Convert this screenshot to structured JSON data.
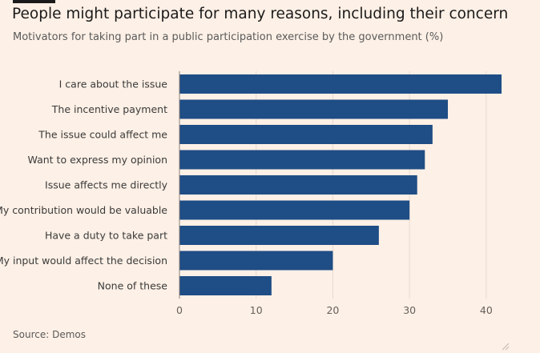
{
  "header": {
    "title": "People might participate for many reasons, including their concern",
    "subtitle": "Motivators for taking part in a public participation exercise by the government (%)"
  },
  "footer": {
    "source": "Source: Demos"
  },
  "colors": {
    "background": "#fdf0e6",
    "bar": "#1f4d85",
    "gridline": "#e6d9ce",
    "axis_text": "#66605b",
    "label_text": "#3a3a3a"
  },
  "chart_data": {
    "type": "bar",
    "orientation": "horizontal",
    "categories": [
      "I care about the issue",
      "The incentive payment",
      "The issue could affect me",
      "Want to express my opinion",
      "Issue affects me directly",
      "My contribution would be valuable",
      "Have a duty to take part",
      "My input would affect the decision",
      "None of these"
    ],
    "values": [
      42,
      35,
      33,
      32,
      31,
      30,
      26,
      20,
      12
    ],
    "xlim": [
      0,
      42
    ],
    "xticks": [
      0,
      10,
      20,
      30,
      40
    ],
    "grid": true,
    "legend": "none"
  }
}
